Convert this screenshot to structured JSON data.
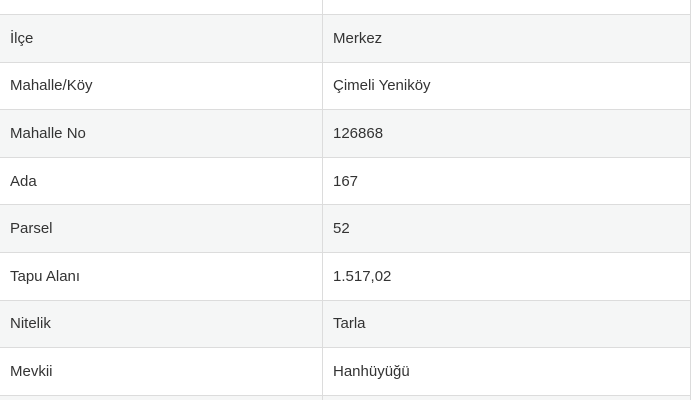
{
  "table": {
    "title": "parcel-details",
    "columns": [
      "label",
      "value"
    ],
    "rows": [
      {
        "label": "İlçe",
        "value": "Merkez"
      },
      {
        "label": "Mahalle/Köy",
        "value": "Çimeli Yeniköy"
      },
      {
        "label": "Mahalle No",
        "value": "126868"
      },
      {
        "label": "Ada",
        "value": "167"
      },
      {
        "label": "Parsel",
        "value": "52"
      },
      {
        "label": "Tapu Alanı",
        "value": "1.517,02"
      },
      {
        "label": "Nitelik",
        "value": "Tarla"
      },
      {
        "label": "Mevkii",
        "value": "Hanhüyüğü"
      }
    ],
    "partial_rows": {
      "top_visible": true,
      "bottom_visible": true
    },
    "colors": {
      "background": "#ffffff",
      "stripe": "#f5f6f6",
      "border": "#dcdcdc",
      "text": "#333333"
    }
  }
}
